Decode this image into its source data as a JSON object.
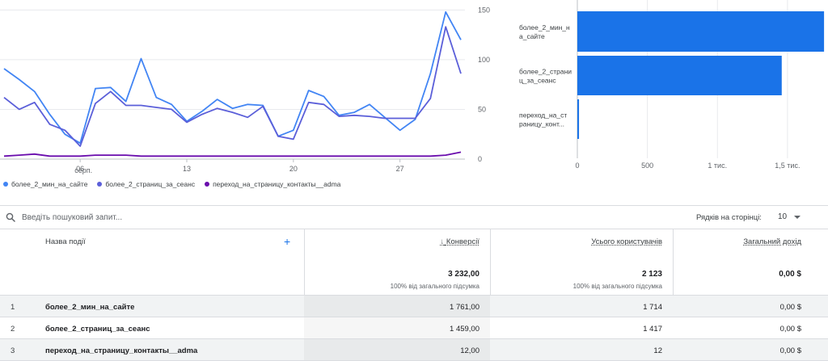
{
  "colors": {
    "series1": "#4285f4",
    "series2": "#5b5fd9",
    "series3": "#6a0dad",
    "bar": "#1a73e8",
    "accent": "#1a73e8"
  },
  "chart_data": [
    {
      "type": "line",
      "x_tick_labels": [
        "06",
        "13",
        "20",
        "27"
      ],
      "x_tick_sublabels": [
        "серп.",
        "",
        "",
        ""
      ],
      "y_tick_labels": [
        "150",
        "100",
        "50",
        "0"
      ],
      "ylim": [
        0,
        160
      ],
      "grid": true,
      "legend_position": "bottom-left",
      "series": [
        {
          "name": "более_2_мин_на_сайте",
          "color": "#4285f4",
          "values": [
            91,
            80,
            68,
            45,
            25,
            16,
            71,
            72,
            58,
            101,
            62,
            55,
            38,
            48,
            60,
            51,
            55,
            54,
            23,
            29,
            69,
            63,
            44,
            47,
            55,
            42,
            29,
            40,
            86,
            148,
            120
          ]
        },
        {
          "name": "более_2_страниц_за_сеанс",
          "color": "#5b5fd9",
          "values": [
            62,
            50,
            57,
            35,
            29,
            13,
            56,
            68,
            54,
            54,
            52,
            50,
            37,
            45,
            51,
            47,
            42,
            53,
            23,
            20,
            57,
            55,
            43,
            44,
            43,
            41,
            41,
            41,
            61,
            133,
            86
          ]
        },
        {
          "name": "переход_на_страницу_контакты__adma",
          "color": "#6a0dad",
          "values": [
            3,
            4,
            5,
            3,
            3,
            3,
            4,
            4,
            4,
            3,
            3,
            3,
            3,
            3,
            3,
            3,
            3,
            3,
            3,
            3,
            3,
            3,
            3,
            3,
            3,
            3,
            3,
            3,
            3,
            4,
            7
          ]
        }
      ]
    },
    {
      "type": "bar",
      "orientation": "horizontal",
      "categories": [
        "более_2_мин_на_сайте",
        "более_2_страниц_за_сеанс",
        "переход_на_страницу_контакты__adma"
      ],
      "category_labels": [
        [
          "более_2_мин_н",
          "а_сайте"
        ],
        [
          "более_2_страни",
          "ц_за_сеанс"
        ],
        [
          "переход_на_ст",
          "раницу_конт..."
        ]
      ],
      "values": [
        1761,
        1459,
        12
      ],
      "x_tick_labels": [
        "0",
        "500",
        "1 тис.",
        "1,5 тис."
      ],
      "x_ticks": [
        0,
        500,
        1000,
        1500
      ],
      "xlim": [
        0,
        1720
      ]
    }
  ],
  "legend": [
    {
      "label": "более_2_мин_на_сайте",
      "color": "#4285f4"
    },
    {
      "label": "более_2_страниц_за_сеанс",
      "color": "#5b5fd9"
    },
    {
      "label": "переход_на_страницу_контакты__adma",
      "color": "#6a0dad"
    }
  ],
  "search": {
    "placeholder": "Введіть пошуковий запит..."
  },
  "pagination": {
    "rows_label": "Рядків на сторінці:",
    "rows_value": "10"
  },
  "table": {
    "headers": {
      "name": "Назва події",
      "add": "+",
      "conversions": "Конверсії",
      "users": "Усього користувачів",
      "revenue": "Загальний дохід",
      "sort_arrow": "↓"
    },
    "totals": {
      "conversions": "3 232,00",
      "conversions_sub": "100% від загального підсумка",
      "users": "2 123",
      "users_sub": "100% від загального підсумка",
      "revenue": "0,00 $"
    },
    "rows": [
      {
        "idx": "1",
        "name": "более_2_мин_на_сайте",
        "conversions": "1 761,00",
        "users": "1 714",
        "revenue": "0,00 $"
      },
      {
        "idx": "2",
        "name": "более_2_страниц_за_сеанс",
        "conversions": "1 459,00",
        "users": "1 417",
        "revenue": "0,00 $"
      },
      {
        "idx": "3",
        "name": "переход_на_страницу_контакты__adma",
        "conversions": "12,00",
        "users": "12",
        "revenue": "0,00 $"
      }
    ]
  }
}
